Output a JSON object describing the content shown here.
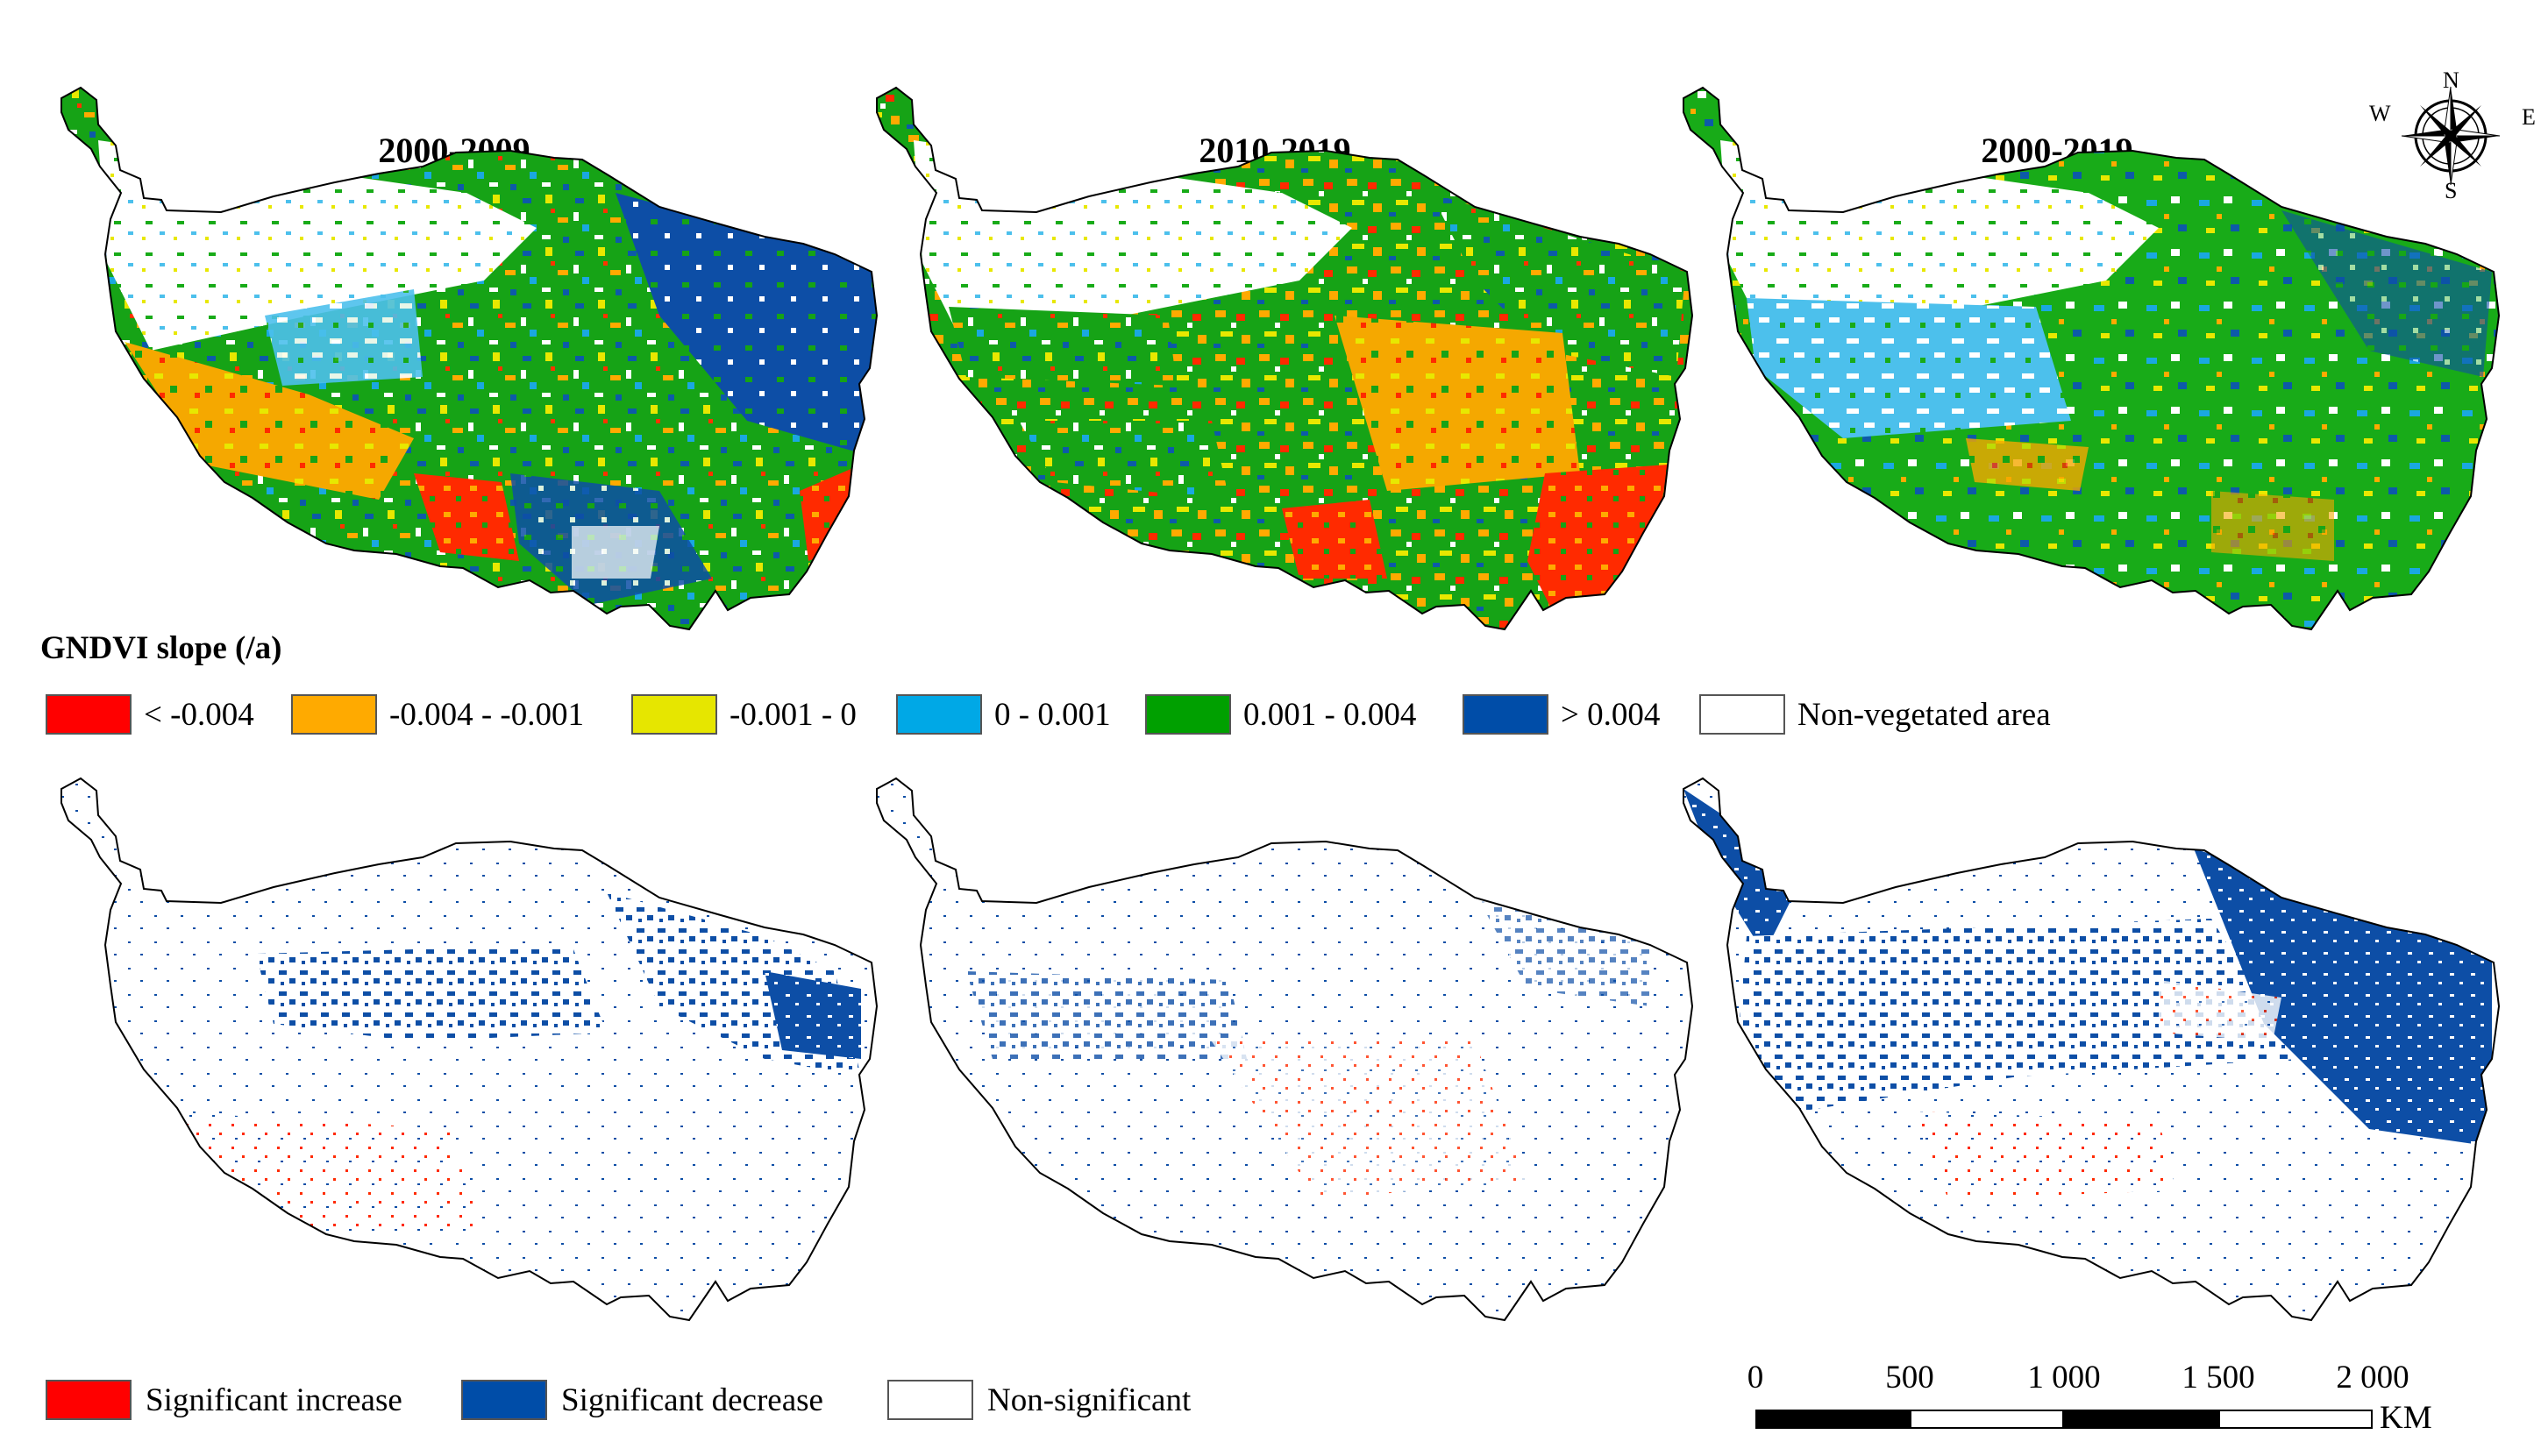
{
  "panels": [
    {
      "title": "2000-2009",
      "row": "slope"
    },
    {
      "title": "2010-2019",
      "row": "slope"
    },
    {
      "title": "2000-2019",
      "row": "slope"
    },
    {
      "title": "",
      "row": "significance"
    },
    {
      "title": "",
      "row": "significance"
    },
    {
      "title": "",
      "row": "significance"
    }
  ],
  "slope_legend": {
    "title": "GNDVI slope (/a)",
    "items": [
      {
        "label": "< -0.004",
        "color": "#ff0000"
      },
      {
        "label": "-0.004 - -0.001",
        "color": "#ffaa00"
      },
      {
        "label": "-0.001 - 0",
        "color": "#e6e600"
      },
      {
        "label": "0 - 0.001",
        "color": "#00a8e6"
      },
      {
        "label": "0.001 - 0.004",
        "color": "#00a000"
      },
      {
        "label": "> 0.004",
        "color": "#004da8"
      },
      {
        "label": "Non-vegetated area",
        "color": "#ffffff"
      }
    ]
  },
  "significance_legend": {
    "items": [
      {
        "label": "Significant increase",
        "color": "#ff0000"
      },
      {
        "label": "Significant decrease",
        "color": "#004da8"
      },
      {
        "label": "Non-significant",
        "color": "#ffffff"
      }
    ]
  },
  "scale_bar": {
    "labels": [
      "0",
      "500",
      "1 000",
      "1 500",
      "2 000"
    ],
    "unit": "KM"
  },
  "north_arrow": {
    "n": "N",
    "s": "S",
    "e": "E",
    "w": "W"
  }
}
